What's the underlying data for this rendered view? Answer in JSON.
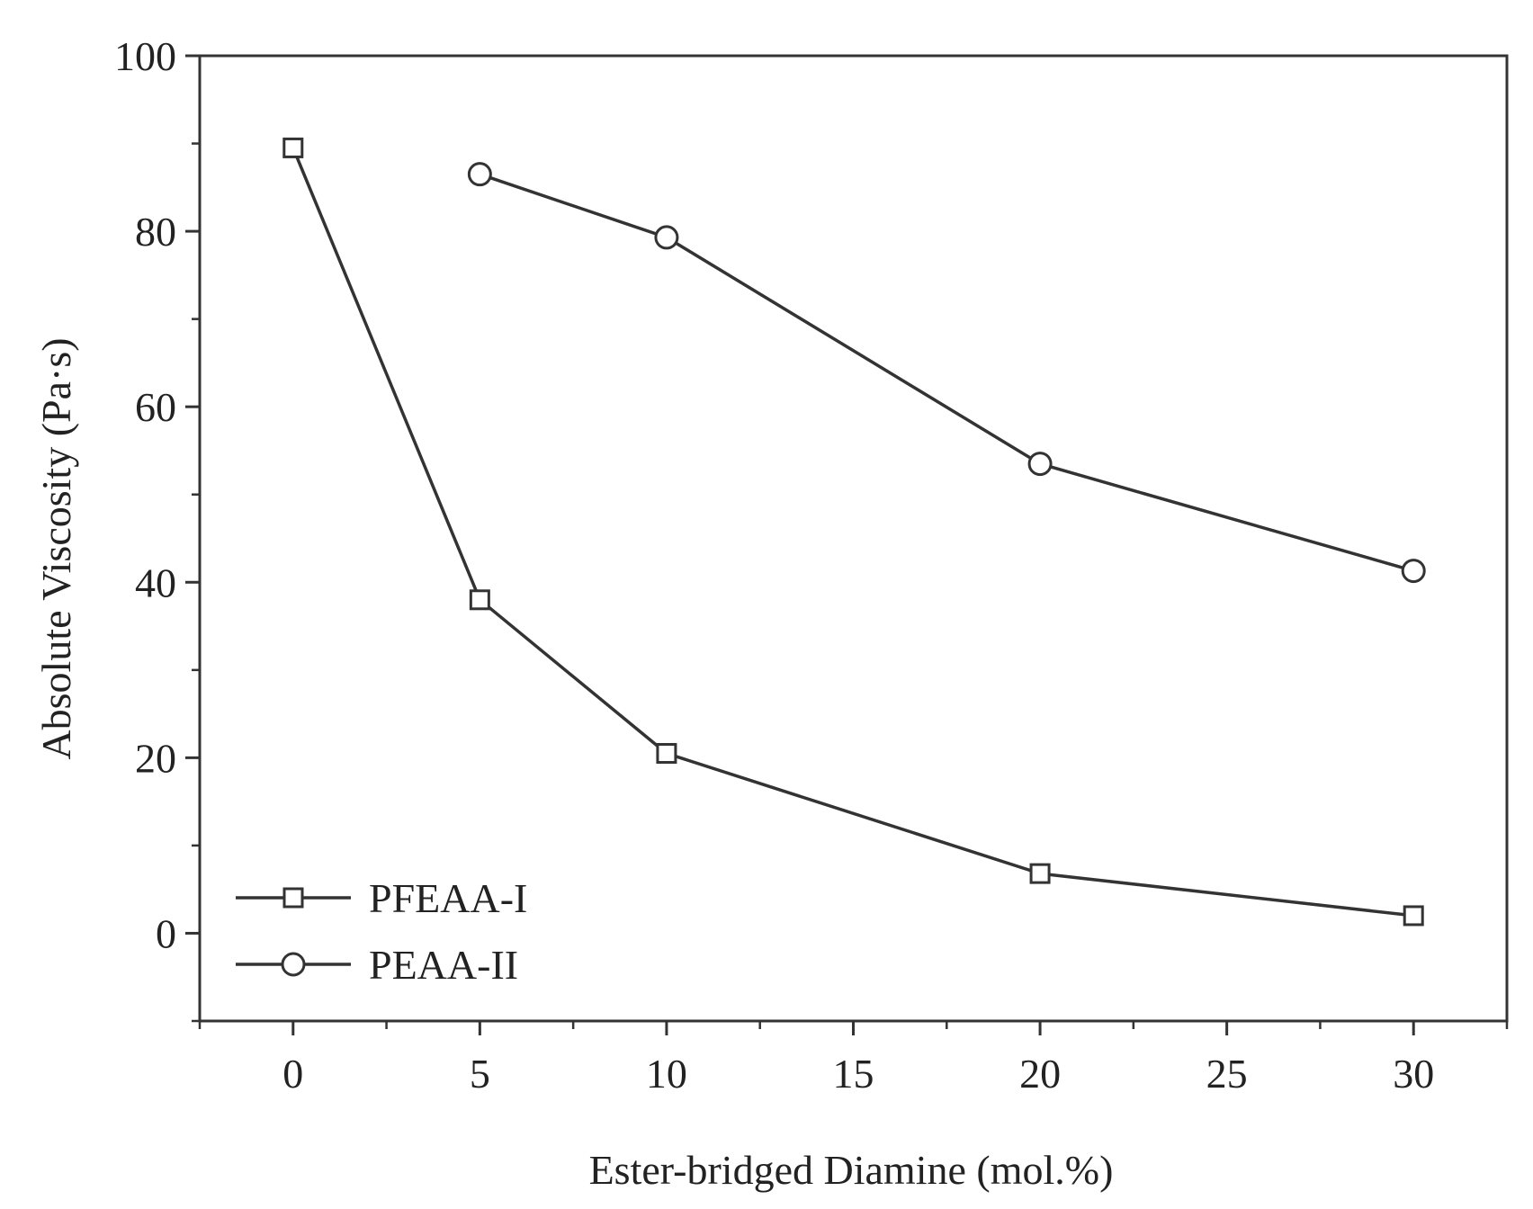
{
  "chart_data": {
    "type": "line",
    "title": "",
    "xlabel": "Ester-bridged Diamine (mol.%)",
    "ylabel": "Absolute Viscosity (Pa·s)",
    "xlim": [
      -2.5,
      32.5
    ],
    "ylim": [
      -10,
      100
    ],
    "x_ticks": [
      0,
      5,
      10,
      15,
      20,
      25,
      30
    ],
    "x_tick_labels": [
      "0",
      "5",
      "10",
      "15",
      "20",
      "25",
      "30"
    ],
    "y_ticks": [
      0,
      20,
      40,
      60,
      80,
      100
    ],
    "y_tick_labels": [
      "0",
      "20",
      "40",
      "60",
      "80",
      "100"
    ],
    "grid": false,
    "legend_position": "bottom-left",
    "line_color": "#333333",
    "series": [
      {
        "name": "PFEAA-I",
        "marker": "square",
        "x": [
          0,
          5,
          10,
          20,
          30
        ],
        "values": [
          89.5,
          38,
          20.5,
          6.8,
          2
        ]
      },
      {
        "name": "PEAA-II",
        "marker": "circle",
        "x": [
          5,
          10,
          20,
          30
        ],
        "values": [
          86.5,
          79.3,
          53.5,
          41.3
        ]
      }
    ]
  }
}
